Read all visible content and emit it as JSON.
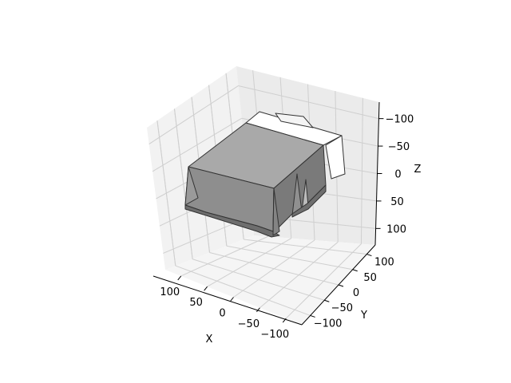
{
  "chart_data": {
    "type": "3d-surface",
    "title": "",
    "xlabel": "X",
    "ylabel": "Y",
    "zlabel": "Z",
    "xlim": [
      -130,
      130
    ],
    "ylim": [
      -130,
      130
    ],
    "zlim": [
      130,
      -130
    ],
    "xticks": [
      {
        "value": 100,
        "label": "100"
      },
      {
        "value": 50,
        "label": "50"
      },
      {
        "value": 0,
        "label": "0"
      },
      {
        "value": -50,
        "label": "−50"
      },
      {
        "value": -100,
        "label": "−100"
      }
    ],
    "yticks": [
      {
        "value": 100,
        "label": "100"
      },
      {
        "value": 50,
        "label": "50"
      },
      {
        "value": 0,
        "label": "0"
      },
      {
        "value": -50,
        "label": "−50"
      },
      {
        "value": -100,
        "label": "−100"
      }
    ],
    "zticks": [
      {
        "value": -100,
        "label": "−100"
      },
      {
        "value": -50,
        "label": "−50"
      },
      {
        "value": 0,
        "label": "0"
      },
      {
        "value": 50,
        "label": "50"
      },
      {
        "value": 100,
        "label": "100"
      }
    ],
    "grid": true,
    "object": {
      "description": "box-like closed mesh",
      "face_colors": {
        "top": "#a9a9a9",
        "front": "#8e8e8e",
        "side": "#7a7a7a",
        "lit": "#ffffff"
      },
      "edge_color": "#333333"
    },
    "pane_colors": {
      "left": "#f2f2f2",
      "right": "#ebebeb",
      "floor": "#f5f5f5",
      "grid": "#cfcfcf"
    }
  }
}
